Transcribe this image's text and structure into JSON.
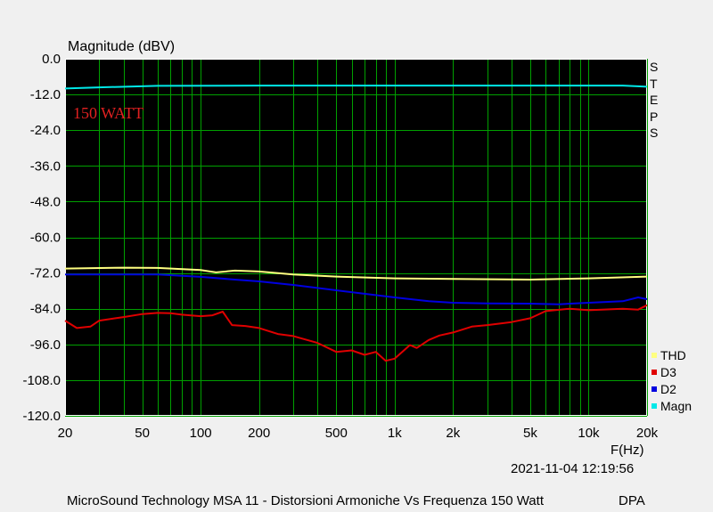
{
  "chart_data": {
    "type": "line",
    "title": "Magnitude (dBV)",
    "xlabel": "F(Hz)",
    "ylabel": "Magnitude (dBV)",
    "x_scale": "log",
    "xlim": [
      20,
      20000
    ],
    "ylim": [
      -120,
      0
    ],
    "x_ticks": [
      20,
      50,
      100,
      200,
      500,
      1000,
      2000,
      5000,
      10000,
      20000
    ],
    "x_tick_labels": [
      "20",
      "50",
      "100",
      "200",
      "500",
      "1k",
      "2k",
      "5k",
      "10k",
      "20k"
    ],
    "y_ticks": [
      0,
      -12,
      -24,
      -36,
      -48,
      -60,
      -72,
      -84,
      -96,
      -108,
      -120
    ],
    "y_tick_labels": [
      "0.0",
      "-12.0",
      "-24.0",
      "-36.0",
      "-48.0",
      "-60.0",
      "-72.0",
      "-84.0",
      "-96.0",
      "-108.0",
      "-120.0"
    ],
    "grid": true,
    "legend_position": "bottom-right",
    "annotation": "150 WATT",
    "series": [
      {
        "name": "THD",
        "color": "#ffff80",
        "points": [
          [
            20,
            -70.5
          ],
          [
            40,
            -70.2
          ],
          [
            60,
            -70.3
          ],
          [
            100,
            -71
          ],
          [
            120,
            -71.8
          ],
          [
            150,
            -71.2
          ],
          [
            200,
            -71.5
          ],
          [
            300,
            -72.5
          ],
          [
            500,
            -73.2
          ],
          [
            1000,
            -73.8
          ],
          [
            2000,
            -74
          ],
          [
            5000,
            -74.2
          ],
          [
            10000,
            -73.8
          ],
          [
            20000,
            -73.2
          ]
        ]
      },
      {
        "name": "D3",
        "color": "#e00000",
        "points": [
          [
            20,
            -88
          ],
          [
            23,
            -90.5
          ],
          [
            27,
            -90
          ],
          [
            30,
            -88
          ],
          [
            40,
            -86.8
          ],
          [
            50,
            -85.8
          ],
          [
            60,
            -85.4
          ],
          [
            70,
            -85.5
          ],
          [
            80,
            -86
          ],
          [
            100,
            -86.5
          ],
          [
            115,
            -86.2
          ],
          [
            130,
            -85
          ],
          [
            145,
            -89.5
          ],
          [
            170,
            -89.8
          ],
          [
            200,
            -90.5
          ],
          [
            250,
            -92.5
          ],
          [
            300,
            -93.2
          ],
          [
            400,
            -95.5
          ],
          [
            500,
            -98.5
          ],
          [
            600,
            -98
          ],
          [
            700,
            -99.5
          ],
          [
            800,
            -98.5
          ],
          [
            900,
            -101.5
          ],
          [
            1000,
            -100.8
          ],
          [
            1200,
            -96.2
          ],
          [
            1300,
            -97.2
          ],
          [
            1500,
            -94.5
          ],
          [
            1700,
            -93
          ],
          [
            2000,
            -92
          ],
          [
            2500,
            -90
          ],
          [
            3000,
            -89.5
          ],
          [
            4000,
            -88.5
          ],
          [
            5000,
            -87.2
          ],
          [
            6000,
            -84.8
          ],
          [
            8000,
            -84
          ],
          [
            10000,
            -84.5
          ],
          [
            15000,
            -84
          ],
          [
            18000,
            -84.3
          ],
          [
            20000,
            -82.8
          ]
        ]
      },
      {
        "name": "D2",
        "color": "#0000e0",
        "points": [
          [
            20,
            -72.5
          ],
          [
            60,
            -72.5
          ],
          [
            100,
            -73.3
          ],
          [
            150,
            -74.2
          ],
          [
            200,
            -74.8
          ],
          [
            300,
            -76
          ],
          [
            500,
            -77.8
          ],
          [
            1000,
            -80.2
          ],
          [
            1500,
            -81.5
          ],
          [
            2000,
            -82
          ],
          [
            3000,
            -82.2
          ],
          [
            5000,
            -82.3
          ],
          [
            7000,
            -82.5
          ],
          [
            10000,
            -82
          ],
          [
            15000,
            -81.5
          ],
          [
            18000,
            -80.2
          ],
          [
            20000,
            -80.8
          ]
        ]
      },
      {
        "name": "Magn",
        "color": "#00e8e8",
        "points": [
          [
            20,
            -10
          ],
          [
            30,
            -9.6
          ],
          [
            60,
            -9.1
          ],
          [
            200,
            -9.0
          ],
          [
            1000,
            -9.0
          ],
          [
            5000,
            -9.0
          ],
          [
            15000,
            -9.0
          ],
          [
            20000,
            -9.4
          ]
        ]
      }
    ]
  },
  "side_label": "STEPS",
  "timestamp": "2021-11-04 12:19:56",
  "footer": "MicroSound Technology MSA 11 - Distorsioni Armoniche Vs Frequenza 150 Watt",
  "footer_right": "DPA",
  "colors": {
    "plot_bg": "#000000",
    "grid": "#00a000",
    "frame": "#ffffff",
    "annotation": "#e02020",
    "page_bg": "#f0f0f0"
  }
}
